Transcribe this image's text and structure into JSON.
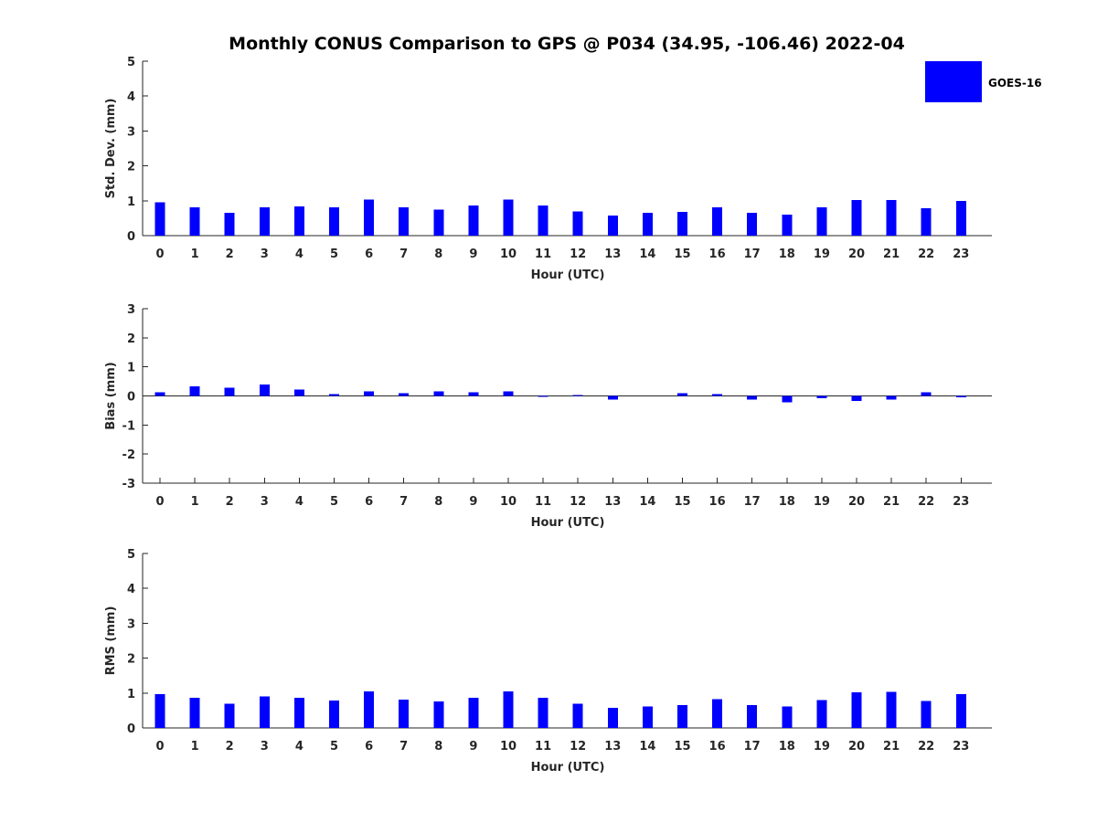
{
  "title": "Monthly CONUS Comparison to GPS @ P034 (34.95, -106.46) 2022-04",
  "legend": {
    "label": "GOES-16",
    "color": "#0000ff"
  },
  "chart_data": [
    {
      "type": "bar",
      "name": "std-dev",
      "ylabel": "Std. Dev. (mm)",
      "xlabel": "Hour (UTC)",
      "ylim": [
        0,
        5
      ],
      "yticks": [
        0,
        1,
        2,
        3,
        4,
        5
      ],
      "categories": [
        "0",
        "1",
        "2",
        "3",
        "4",
        "5",
        "6",
        "7",
        "8",
        "9",
        "10",
        "11",
        "12",
        "13",
        "14",
        "15",
        "16",
        "17",
        "18",
        "19",
        "20",
        "21",
        "22",
        "23"
      ],
      "series": [
        {
          "name": "GOES-16",
          "color": "#0000ff",
          "values": [
            0.96,
            0.81,
            0.65,
            0.81,
            0.84,
            0.81,
            1.04,
            0.81,
            0.75,
            0.86,
            1.04,
            0.86,
            0.7,
            0.57,
            0.65,
            0.68,
            0.81,
            0.65,
            0.6,
            0.81,
            1.02,
            1.02,
            0.78,
            0.99
          ]
        }
      ]
    },
    {
      "type": "bar",
      "name": "bias",
      "ylabel": "Bias (mm)",
      "xlabel": "Hour (UTC)",
      "ylim": [
        -3,
        3
      ],
      "yticks": [
        -3,
        -2,
        -1,
        0,
        1,
        2,
        3
      ],
      "categories": [
        "0",
        "1",
        "2",
        "3",
        "4",
        "5",
        "6",
        "7",
        "8",
        "9",
        "10",
        "11",
        "12",
        "13",
        "14",
        "15",
        "16",
        "17",
        "18",
        "19",
        "20",
        "21",
        "22",
        "23"
      ],
      "series": [
        {
          "name": "GOES-16",
          "color": "#0000ff",
          "values": [
            0.12,
            0.33,
            0.28,
            0.4,
            0.22,
            0.06,
            0.15,
            0.1,
            0.15,
            0.12,
            0.15,
            -0.01,
            0.03,
            -0.12,
            0.0,
            0.1,
            0.06,
            -0.12,
            -0.22,
            -0.08,
            -0.18,
            -0.12,
            0.12,
            -0.05
          ]
        }
      ]
    },
    {
      "type": "bar",
      "name": "rms",
      "ylabel": "RMS (mm)",
      "xlabel": "Hour (UTC)",
      "ylim": [
        0,
        5
      ],
      "yticks": [
        0,
        1,
        2,
        3,
        4,
        5
      ],
      "categories": [
        "0",
        "1",
        "2",
        "3",
        "4",
        "5",
        "6",
        "7",
        "8",
        "9",
        "10",
        "11",
        "12",
        "13",
        "14",
        "15",
        "16",
        "17",
        "18",
        "19",
        "20",
        "21",
        "22",
        "23"
      ],
      "series": [
        {
          "name": "GOES-16",
          "color": "#0000ff",
          "values": [
            0.97,
            0.87,
            0.7,
            0.9,
            0.86,
            0.79,
            1.05,
            0.81,
            0.76,
            0.87,
            1.05,
            0.87,
            0.7,
            0.58,
            0.62,
            0.65,
            0.82,
            0.66,
            0.62,
            0.8,
            1.02,
            1.03,
            0.77,
            0.97
          ]
        }
      ]
    }
  ]
}
